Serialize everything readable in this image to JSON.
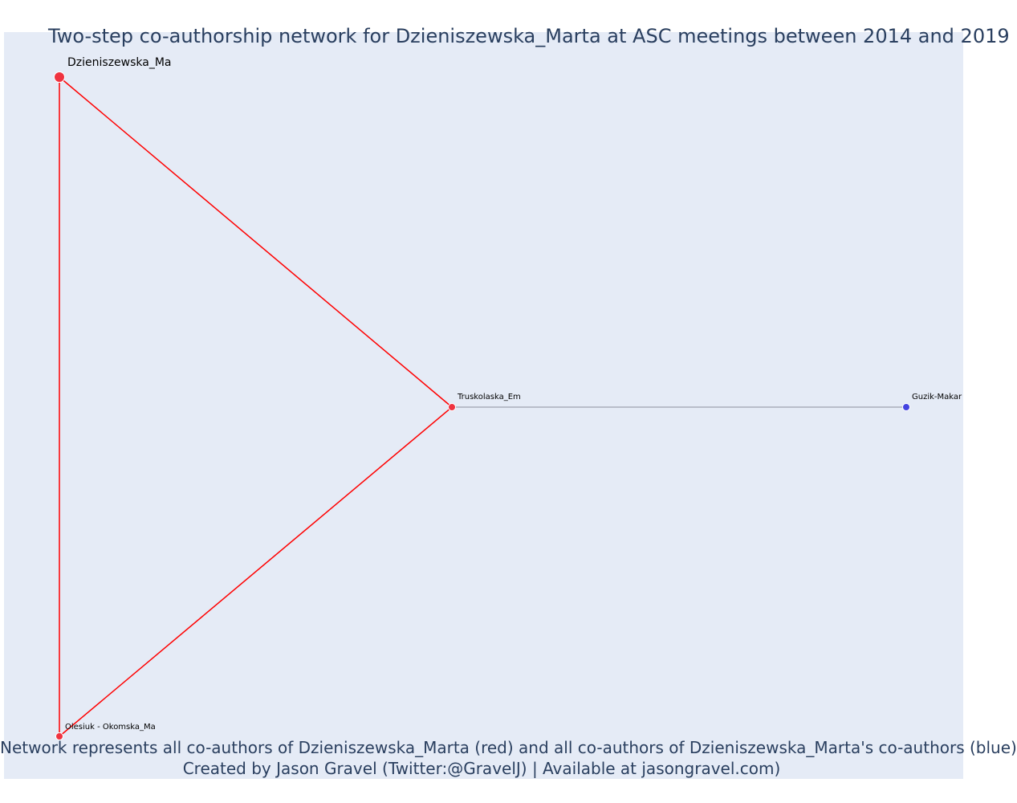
{
  "title": "Two-step co-authorship network for Dzieniszewska_Marta at ASC meetings between 2014 and 2019",
  "caption": {
    "line1": "Network represents all co-authors of Dzieniszewska_Marta (red) and all co-authors of Dzieniszewska_Marta's co-authors (blue)",
    "line2": "Created by Jason Gravel (Twitter:@GravelJ) | Available at jasongravel.com)"
  },
  "colors": {
    "background": "#e5ebf6",
    "coauthor": "#ef3340",
    "second_step": "#4343e0",
    "direct_edge": "#ff0000",
    "indirect_edge": "#8a8f9c",
    "text": "#2a3f5f"
  },
  "chart_data": {
    "type": "network",
    "nodes": [
      {
        "id": "Dzieniszewska_Ma",
        "label": "Dzieniszewska_Ma",
        "group": "focal"
      },
      {
        "id": "Truskolaska_Em",
        "label": "Truskolaska_Em",
        "group": "coauthor"
      },
      {
        "id": "Olesiuk - Okomska_Ma",
        "label": "Olesiuk - Okomska_Ma",
        "group": "coauthor"
      },
      {
        "id": "Guzik-Makar",
        "label": "Guzik-Makar",
        "group": "second_step"
      }
    ],
    "edges": [
      {
        "source": "Dzieniszewska_Ma",
        "target": "Truskolaska_Em",
        "type": "direct"
      },
      {
        "source": "Dzieniszewska_Ma",
        "target": "Olesiuk - Okomska_Ma",
        "type": "direct"
      },
      {
        "source": "Truskolaska_Em",
        "target": "Olesiuk - Okomska_Ma",
        "type": "direct"
      },
      {
        "source": "Truskolaska_Em",
        "target": "Guzik-Makar",
        "type": "indirect"
      }
    ]
  }
}
